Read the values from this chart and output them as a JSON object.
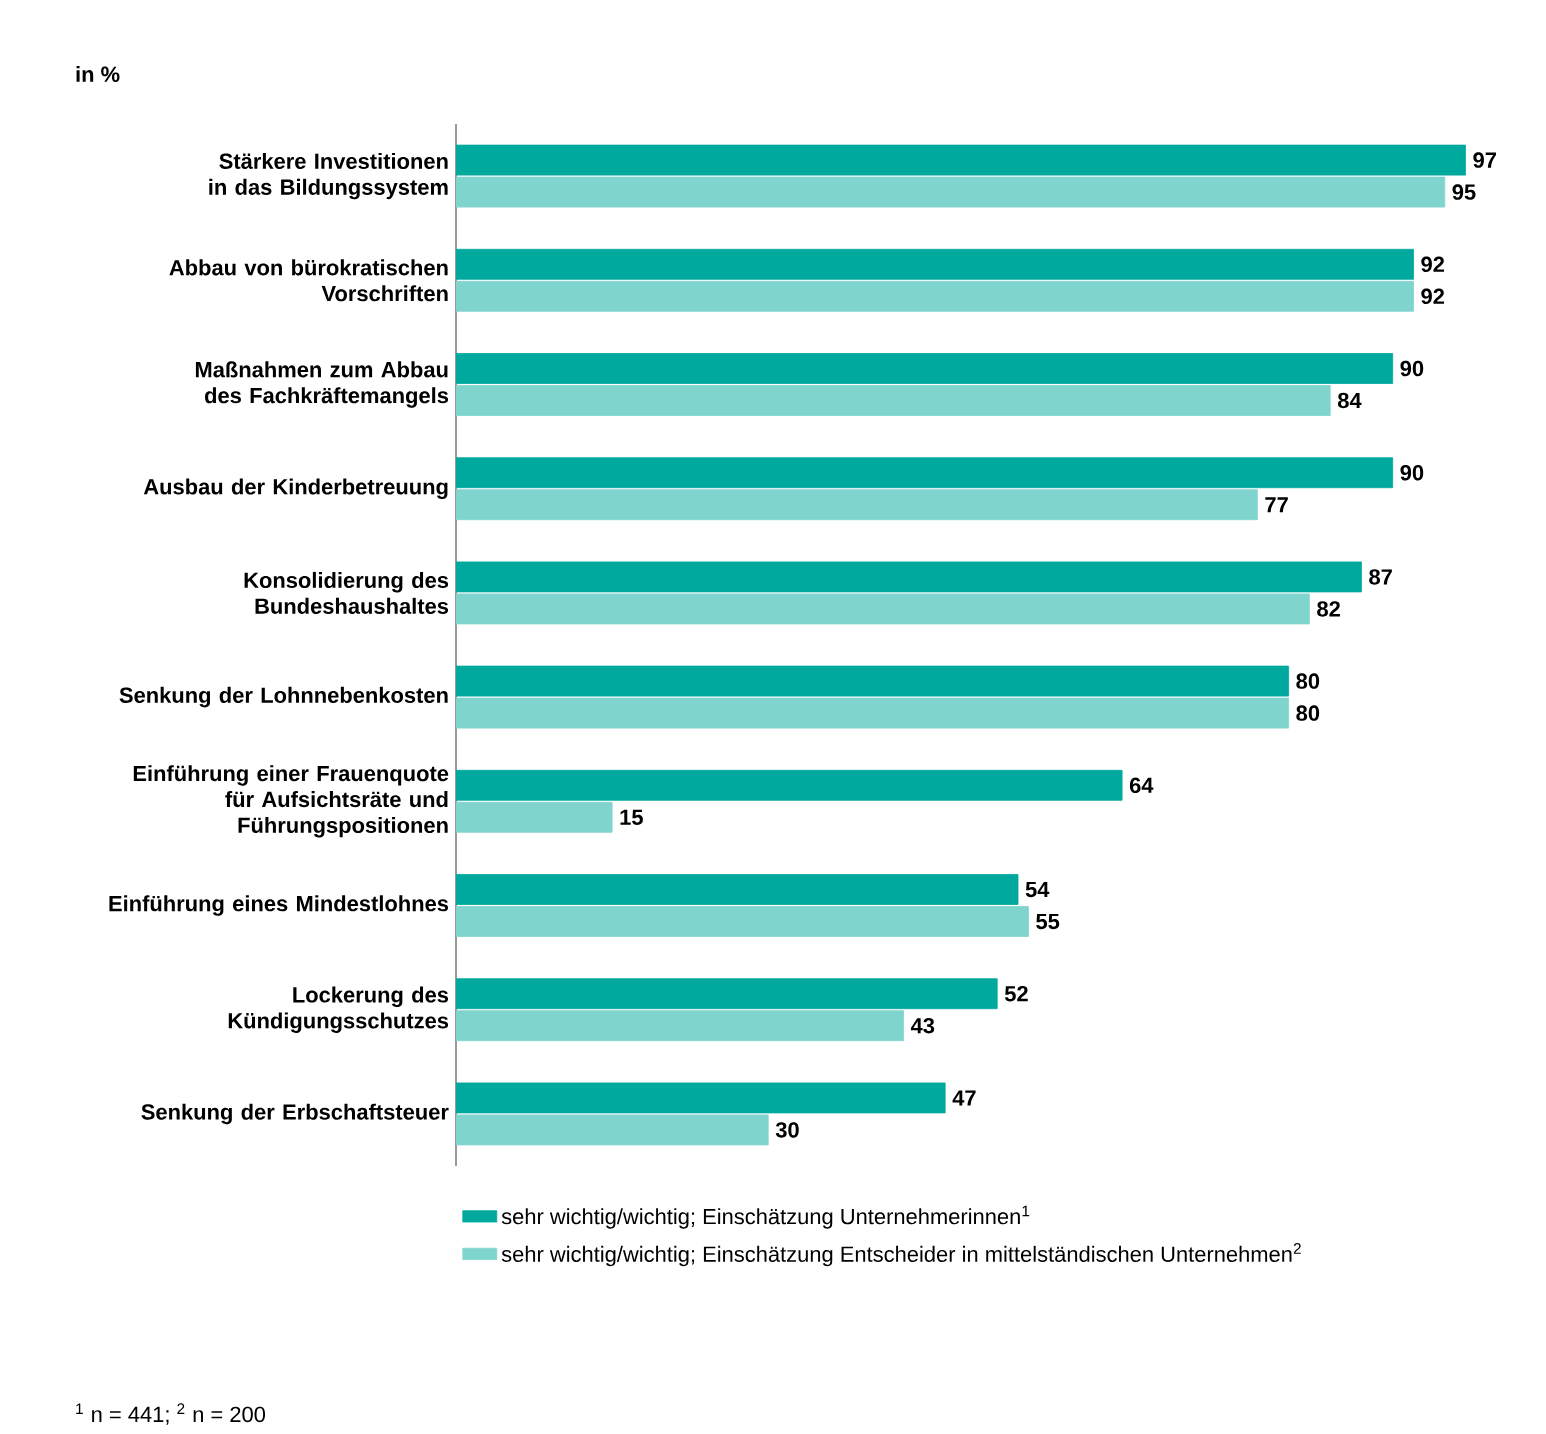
{
  "chart_data": {
    "type": "bar",
    "orientation": "horizontal",
    "title": "in %",
    "categories": [
      "Stärkere Investitionen in das Bildungssystem",
      "Abbau von bürokratischen Vorschriften",
      "Maßnahmen zum Abbau des Fachkräftemangels",
      "Ausbau der Kinderbetreuung",
      "Konsolidierung des Bundeshaushaltes",
      "Senkung der Lohnnebenkosten",
      "Einführung einer Frauenquote für Aufsichtsräte und Führungspositionen",
      "Einführung eines Mindestlohnes",
      "Lockerung des Kündigungsschutzes",
      "Senkung der Erbschaftsteuer"
    ],
    "series": [
      {
        "name": "sehr wichtig/wichtig; Einschätzung Unternehmerinnen$^{1}$",
        "color": "#00a99d",
        "values": [
          97,
          92,
          90,
          90,
          87,
          80,
          64,
          54,
          52,
          47
        ]
      },
      {
        "name": "sehr wichtig/wichtig; Einschätzung Entscheider in mittelständischen Unternehmen$^{2}$",
        "color": "#80d4ce",
        "values": [
          95,
          92,
          84,
          77,
          82,
          80,
          15,
          55,
          43,
          30
        ]
      }
    ],
    "data_labels": true,
    "legend": "bottom",
    "annotations": [
      "$^{1}$ n = 441; $^{2}$ n = 200"
    ]
  }
}
